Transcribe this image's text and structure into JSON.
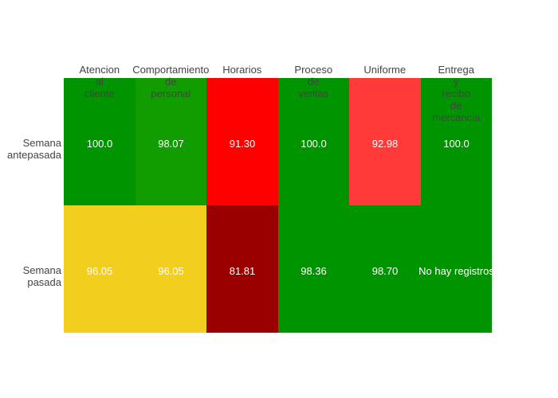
{
  "chart_data": {
    "type": "heatmap",
    "title": "",
    "xlabel": "",
    "ylabel": "",
    "grid": false,
    "legend_position": "none",
    "x_categories": [
      "Atencion al cliente",
      "Comportamiento de personal",
      "Horarios",
      "Proceso de ventas",
      "Uniforme",
      "Entrega y recibo de mercancia"
    ],
    "x_header_lines": [
      [
        "Atencion",
        "al",
        "cliente"
      ],
      [
        "Comportamiento",
        "de",
        "personal"
      ],
      [
        "Horarios"
      ],
      [
        "Proceso",
        "de",
        "ventas"
      ],
      [
        "Uniforme"
      ],
      [
        "Entrega",
        "y",
        "recibo",
        "de",
        "mercancia"
      ]
    ],
    "y_categories": [
      "Semana antepasada",
      "Semana pasada"
    ],
    "y_label_lines": [
      [
        "Semana",
        "antepasada"
      ],
      [
        "Semana",
        "pasada"
      ]
    ],
    "series": [
      {
        "name": "Semana antepasada",
        "values": [
          100.0,
          98.07,
          91.3,
          100.0,
          92.98,
          100.0
        ]
      },
      {
        "name": "Semana pasada",
        "values": [
          96.05,
          96.05,
          81.81,
          98.36,
          98.7,
          null
        ]
      }
    ],
    "no_data_text": "No hay registros",
    "cells": [
      [
        {
          "text": "100.0",
          "color": "#009500"
        },
        {
          "text": "98.07",
          "color": "#119D00"
        },
        {
          "text": "91.30",
          "color": "#FF0000"
        },
        {
          "text": "100.0",
          "color": "#009500"
        },
        {
          "text": "92.98",
          "color": "#FF3A38"
        },
        {
          "text": "100.0",
          "color": "#009500"
        }
      ],
      [
        {
          "text": "96.05",
          "color": "#F2CE1D"
        },
        {
          "text": "96.05",
          "color": "#F2CE1D"
        },
        {
          "text": "81.81",
          "color": "#9B0000"
        },
        {
          "text": "98.36",
          "color": "#009500"
        },
        {
          "text": "98.70",
          "color": "#009500"
        },
        {
          "text": "No hay registros",
          "color": "#009500"
        }
      ]
    ],
    "colors": {
      "green": "#009500",
      "green_light": "#119D00",
      "yellow": "#F2CE1D",
      "red": "#FF0000",
      "red_light": "#FF3A38",
      "dark_red": "#9B0000",
      "axis_text": "#444444",
      "cell_text": "#FFFFFF",
      "background": "#FFFFFF"
    }
  }
}
